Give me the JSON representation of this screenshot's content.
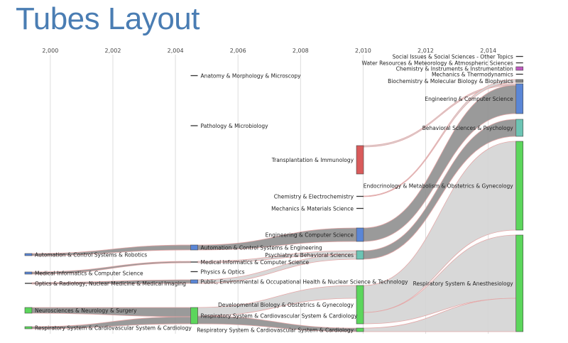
{
  "page": {
    "title": "Tubes Layout"
  },
  "colors": {
    "green": "#5cd65c",
    "blue": "#5a86d6",
    "red": "#d95b5b",
    "teal": "#6cc4b4",
    "magenta": "#c05ac0",
    "grey": "#888888",
    "tube_dark": "#8f8f8f",
    "tube_light": "#d4d4d4",
    "tube_outline": "#e4a6a6"
  },
  "chart_data": {
    "type": "alluvial",
    "title": "Tubes Layout",
    "x_axis": {
      "min": 1999.3,
      "max": 2015.8,
      "ticks": [
        2000,
        2002,
        2004,
        2006,
        2008,
        2010,
        2012,
        2014
      ],
      "tick_labels": [
        "2,000",
        "2,002",
        "2,004",
        "2,006",
        "2,008",
        "2,010",
        "2,012",
        "2,014"
      ]
    },
    "grid": true,
    "nodes": [
      {
        "id": "n00",
        "year": 1999.3,
        "label": "Automation & Control Systems & Robotics",
        "y0": 357,
        "y1": 360,
        "color": "blue",
        "label_side": "right"
      },
      {
        "id": "n01",
        "year": 1999.3,
        "label": "Medical Informatics & Computer Science",
        "y0": 383,
        "y1": 386,
        "color": "blue",
        "label_side": "right"
      },
      {
        "id": "n02",
        "year": 1999.3,
        "label": "Optics & Radiology, Nuclear Medicine & Medical Imaging",
        "y0": 398,
        "y1": 400,
        "color": "grey",
        "label_side": "right"
      },
      {
        "id": "n03",
        "year": 1999.3,
        "label": "Neurosciences & Neurology & Surgery",
        "y0": 433,
        "y1": 441,
        "color": "green",
        "label_side": "right"
      },
      {
        "id": "n04",
        "year": 1999.3,
        "label": "Respiratory System & Cardiovascular System & Cardiology",
        "y0": 460,
        "y1": 463,
        "color": "green",
        "label_side": "right"
      },
      {
        "id": "n10",
        "year": 2004.6,
        "label": "Anatomy & Morphology & Microscopy",
        "y0": 106,
        "y1": 107,
        "color": "grey",
        "label_side": "right"
      },
      {
        "id": "n11",
        "year": 2004.6,
        "label": "Pathology & Microbiology",
        "y0": 176,
        "y1": 178,
        "color": "grey",
        "label_side": "right"
      },
      {
        "id": "n12",
        "year": 2004.6,
        "label": "Automation & Control Systems & Engineering",
        "y0": 345,
        "y1": 352,
        "color": "blue",
        "label_side": "right"
      },
      {
        "id": "n13",
        "year": 2004.6,
        "label": "Medical Informatics & Computer Science",
        "y0": 368,
        "y1": 370,
        "color": "grey",
        "label_side": "right"
      },
      {
        "id": "n14",
        "year": 2004.6,
        "label": "Physics & Optics",
        "y0": 382,
        "y1": 383,
        "color": "grey",
        "label_side": "right"
      },
      {
        "id": "n15",
        "year": 2004.6,
        "label": "Public, Environmental & Occupational Health & Nuclear Science & Technology",
        "y0": 394,
        "y1": 399,
        "color": "blue",
        "label_side": "right"
      },
      {
        "id": "n16",
        "year": 2004.6,
        "label": "Respiratory System & Cardiovascular System & Cardiology",
        "y0": 433,
        "y1": 456,
        "color": "green",
        "label_side": "right"
      },
      {
        "id": "n20",
        "year": 2009.9,
        "label": "Transplantation & Immunology",
        "y0": 205,
        "y1": 245,
        "color": "red",
        "label_side": "left"
      },
      {
        "id": "n21",
        "year": 2009.9,
        "label": "Chemistry & Electrochemistry",
        "y0": 276,
        "y1": 277,
        "color": "grey",
        "label_side": "left"
      },
      {
        "id": "n22",
        "year": 2009.9,
        "label": "Mechanics & Materials Science",
        "y0": 293,
        "y1": 294,
        "color": "grey",
        "label_side": "left"
      },
      {
        "id": "n23",
        "year": 2009.9,
        "label": "Engineering & Computer Science",
        "y0": 321,
        "y1": 340,
        "color": "blue",
        "label_side": "left"
      },
      {
        "id": "n24",
        "year": 2009.9,
        "label": "Psychiatry & Behavioral Sciences",
        "y0": 353,
        "y1": 365,
        "color": "teal",
        "label_side": "left"
      },
      {
        "id": "n25",
        "year": 2009.9,
        "label": "Developmental Biology & Obstetrics & Gynecology",
        "y0": 402,
        "y1": 456,
        "color": "green",
        "label_side": "left"
      },
      {
        "id": "n25b",
        "year": 2009.9,
        "label": "Respiratory System & Cardiovascular System & Cardiology",
        "y0": 0,
        "y1": 0,
        "color": "green",
        "label_side": "left"
      },
      {
        "id": "n26",
        "year": 2009.9,
        "label": "Respiratory System & Cardiovascular System & Cardiology",
        "y0": 462,
        "y1": 467,
        "color": "green",
        "label_side": "left"
      },
      {
        "id": "n30",
        "year": 2015.0,
        "label": "Social Issues & Social Sciences - Other Topics",
        "y0": 79,
        "y1": 80,
        "color": "grey",
        "label_side": "left"
      },
      {
        "id": "n31",
        "year": 2015.0,
        "label": "Water Resources & Meteorology & Atmospheric Sciences",
        "y0": 88,
        "y1": 89,
        "color": "grey",
        "label_side": "left"
      },
      {
        "id": "n32",
        "year": 2015.0,
        "label": "Chemistry & Instruments & Instrumentation",
        "y0": 94,
        "y1": 99,
        "color": "magenta",
        "label_side": "left"
      },
      {
        "id": "n33",
        "year": 2015.0,
        "label": "Mechanics & Thermodynamics",
        "y0": 104,
        "y1": 105,
        "color": "grey",
        "label_side": "left"
      },
      {
        "id": "n34",
        "year": 2015.0,
        "label": "Biochemistry & Molecular Biology & Biophysics",
        "y0": 112,
        "y1": 116,
        "color": "grey",
        "label_side": "left"
      },
      {
        "id": "n35",
        "year": 2015.0,
        "label": "Engineering & Computer Science",
        "y0": 118,
        "y1": 160,
        "color": "blue",
        "label_side": "left"
      },
      {
        "id": "n36",
        "year": 2015.0,
        "label": "Behavioral Sciences & Psychology",
        "y0": 168,
        "y1": 192,
        "color": "teal",
        "label_side": "left"
      },
      {
        "id": "n37",
        "year": 2015.0,
        "label": "Endocrinology & Metabolism & Obstetrics & Gynecology",
        "y0": 199,
        "y1": 324,
        "color": "green",
        "label_side": "left"
      },
      {
        "id": "n38",
        "year": 2015.0,
        "label": "Respiratory System & Anesthesiology",
        "y0": 331,
        "y1": 467,
        "color": "green",
        "label_side": "left"
      }
    ],
    "links": [
      {
        "from": "n00",
        "to": "n12",
        "s0": 357,
        "s1": 360,
        "t0": 345,
        "t1": 352,
        "shade": "dark"
      },
      {
        "from": "n01",
        "to": "n13",
        "s0": 383,
        "s1": 386,
        "t0": 368,
        "t1": 370,
        "shade": "dark"
      },
      {
        "from": "n02",
        "to": "n15",
        "s0": 398,
        "s1": 400,
        "t0": 394,
        "t1": 399,
        "shade": "dark"
      },
      {
        "from": "n03",
        "to": "n16",
        "s0": 433,
        "s1": 441,
        "t0": 433,
        "t1": 446,
        "shade": "dark"
      },
      {
        "from": "n04",
        "to": "n16",
        "s0": 460,
        "s1": 463,
        "t0": 446,
        "t1": 456,
        "shade": "dark"
      },
      {
        "from": "n12",
        "to": "n23",
        "s0": 345,
        "s1": 352,
        "t0": 321,
        "t1": 340,
        "shade": "dark"
      },
      {
        "from": "n13",
        "to": "n24",
        "s0": 368,
        "s1": 370,
        "t0": 353,
        "t1": 358,
        "shade": "light"
      },
      {
        "from": "n15",
        "to": "n24",
        "s0": 394,
        "s1": 399,
        "t0": 358,
        "t1": 365,
        "shade": "light"
      },
      {
        "from": "n16",
        "to": "n26",
        "s0": 445,
        "s1": 456,
        "t0": 462,
        "t1": 467,
        "shade": "dark"
      },
      {
        "from": "n16",
        "to": "n25",
        "s0": 433,
        "s1": 445,
        "t0": 402,
        "t1": 420,
        "shade": "light"
      },
      {
        "from": "n20",
        "to": "n35",
        "s0": 205,
        "s1": 207,
        "t0": 118,
        "t1": 120,
        "shade": "light"
      },
      {
        "from": "n21",
        "to": "n34",
        "s0": 276,
        "s1": 277,
        "t0": 112,
        "t1": 116,
        "shade": "light"
      },
      {
        "from": "n23",
        "to": "n35",
        "s0": 321,
        "s1": 340,
        "t0": 120,
        "t1": 160,
        "shade": "dark"
      },
      {
        "from": "n24",
        "to": "n36",
        "s0": 353,
        "s1": 365,
        "t0": 168,
        "t1": 192,
        "shade": "dark"
      },
      {
        "from": "n25",
        "to": "n37",
        "s0": 402,
        "s1": 440,
        "t0": 199,
        "t1": 324,
        "shade": "light"
      },
      {
        "from": "n25",
        "to": "n38",
        "s0": 440,
        "s1": 456,
        "t0": 331,
        "t1": 420,
        "shade": "light"
      },
      {
        "from": "n26",
        "to": "n38",
        "s0": 462,
        "s1": 467,
        "t0": 420,
        "t1": 467,
        "shade": "light"
      }
    ]
  }
}
